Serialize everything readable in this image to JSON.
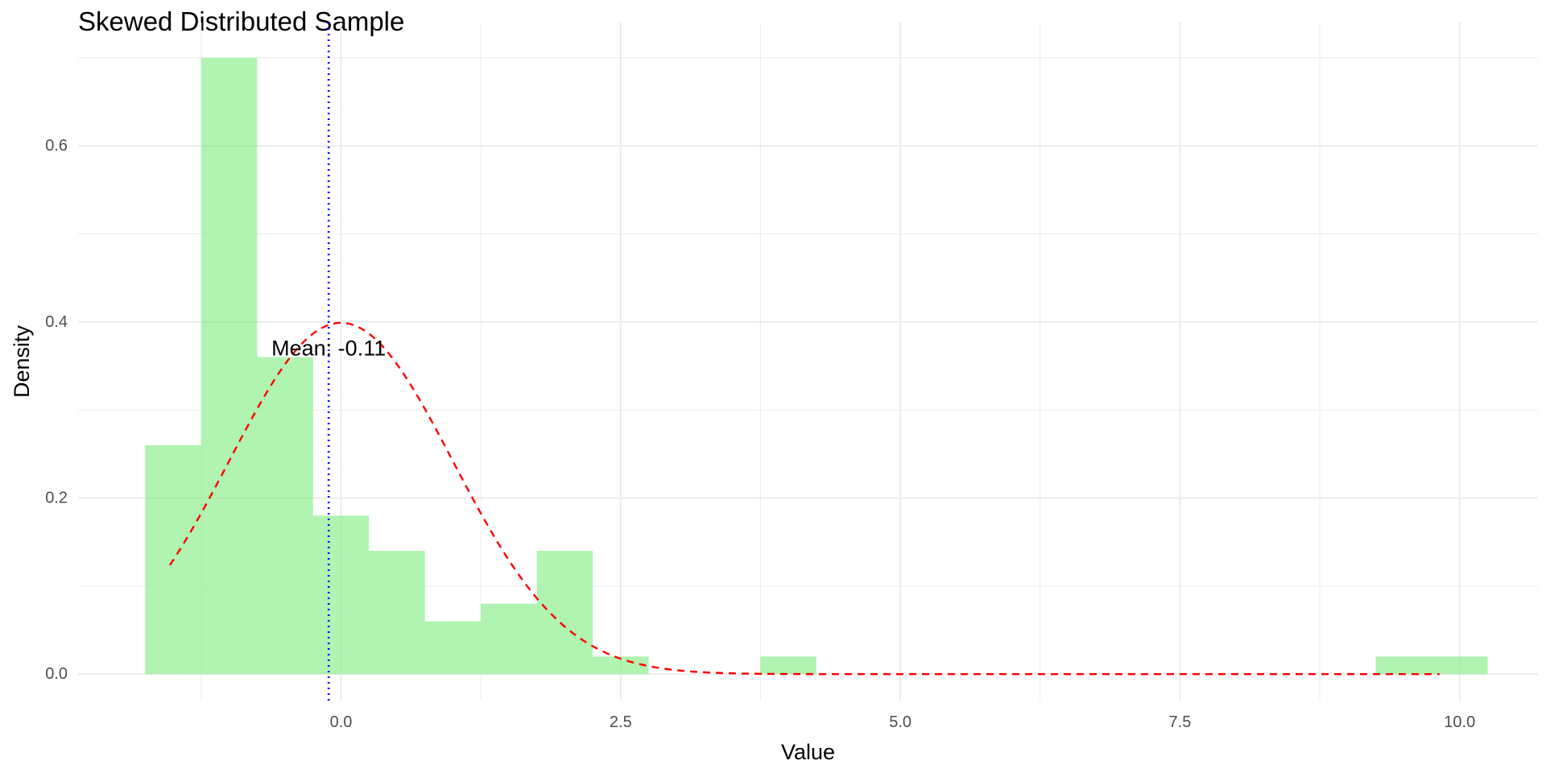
{
  "chart_data": {
    "type": "bar",
    "title": "Skewed Distributed Sample",
    "xlabel": "Value",
    "ylabel": "Density",
    "xlim": [
      -2.35,
      10.7
    ],
    "ylim": [
      -0.03,
      0.74
    ],
    "x_ticks": [
      0.0,
      2.5,
      5.0,
      7.5,
      10.0
    ],
    "x_tick_labels": [
      "0.0",
      "2.5",
      "5.0",
      "7.5",
      "10.0"
    ],
    "y_ticks": [
      0.0,
      0.2,
      0.4,
      0.6
    ],
    "y_tick_labels": [
      "0.0",
      "0.2",
      "0.4",
      "0.6"
    ],
    "grid": true,
    "bin_width": 0.5,
    "bins": [
      {
        "x_start": -1.75,
        "x_end": -1.25,
        "density": 0.26
      },
      {
        "x_start": -1.25,
        "x_end": -0.75,
        "density": 0.7
      },
      {
        "x_start": -0.75,
        "x_end": -0.25,
        "density": 0.36
      },
      {
        "x_start": -0.25,
        "x_end": 0.25,
        "density": 0.18
      },
      {
        "x_start": 0.25,
        "x_end": 0.75,
        "density": 0.14
      },
      {
        "x_start": 0.75,
        "x_end": 1.25,
        "density": 0.06
      },
      {
        "x_start": 1.25,
        "x_end": 1.75,
        "density": 0.08
      },
      {
        "x_start": 1.75,
        "x_end": 2.25,
        "density": 0.14
      },
      {
        "x_start": 2.25,
        "x_end": 2.75,
        "density": 0.02
      },
      {
        "x_start": 3.75,
        "x_end": 4.25,
        "density": 0.02
      },
      {
        "x_start": 9.25,
        "x_end": 9.75,
        "density": 0.02
      },
      {
        "x_start": 9.75,
        "x_end": 10.25,
        "density": 0.02
      }
    ],
    "density_curve": {
      "mean": 0,
      "sd": 1,
      "x_range": [
        -1.53,
        9.82
      ],
      "color": "#ff0000",
      "style": "dashed"
    },
    "mean_line": {
      "x": -0.11,
      "color": "#0000ff",
      "style": "dotted"
    },
    "annotation": {
      "text": "Mean: -0.11",
      "x": -0.11,
      "y": 0.37
    },
    "colors": {
      "bar_fill": "#90ee90",
      "bar_opacity": 0.7,
      "grid": "#ebebeb"
    }
  }
}
